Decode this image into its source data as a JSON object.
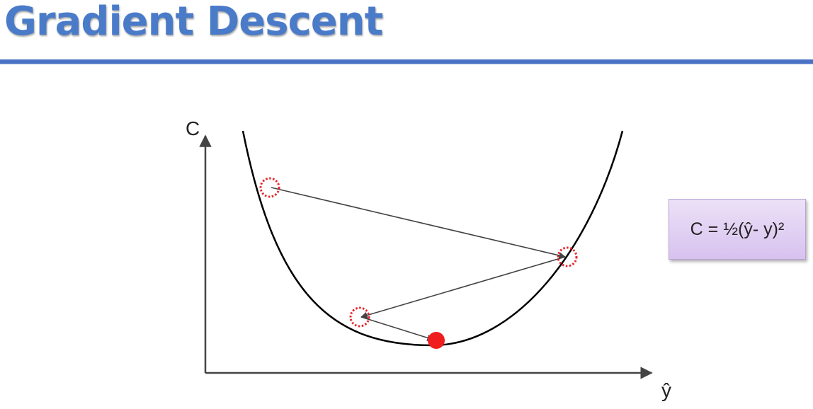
{
  "title": "Gradient Descent",
  "colors": {
    "title": "#4a7bc9",
    "rule": "#4a72c4",
    "curve": "#000000",
    "arrow": "#444444",
    "marker": "#e8262b",
    "box_fill": "#e3d4f3"
  },
  "axes": {
    "y_label": "C",
    "x_label": "ŷ"
  },
  "formula": "C = ½(ŷ- y)²"
}
